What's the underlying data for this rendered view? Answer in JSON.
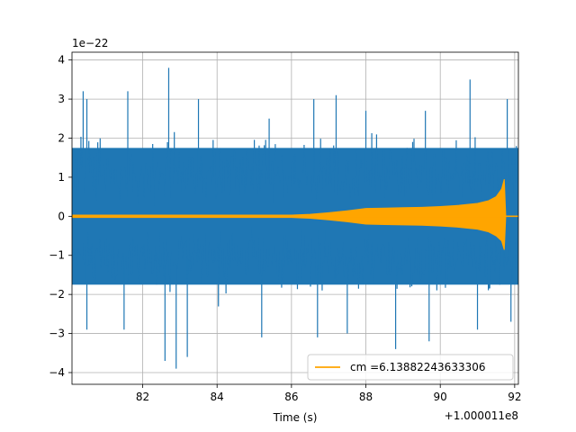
{
  "chart_data": {
    "type": "line",
    "title": "",
    "xlabel": "Time (s)",
    "ylabel": "",
    "x_offset_label": "+1.000011e8",
    "y_scale_label": "1e−22",
    "xlim": [
      80.1,
      92.1
    ],
    "ylim": [
      -4.3,
      4.2
    ],
    "grid": true,
    "legend_placement": "lower right",
    "x_ticks": [
      82,
      84,
      86,
      88,
      90,
      92
    ],
    "x_tick_labels": [
      "82",
      "84",
      "86",
      "88",
      "90",
      "92"
    ],
    "y_ticks": [
      -4,
      -3,
      -2,
      -1,
      0,
      1,
      2,
      3,
      4
    ],
    "y_tick_labels": [
      "−4",
      "−3",
      "−2",
      "−1",
      "0",
      "1",
      "2",
      "3",
      "4"
    ],
    "series": [
      {
        "name": "",
        "color": "#1f77b4",
        "description": "noisy strain data",
        "peaks_pos": [
          [
            80.4,
            3.2
          ],
          [
            80.5,
            3.0
          ],
          [
            81.6,
            3.2
          ],
          [
            82.7,
            3.8
          ],
          [
            83.5,
            3.0
          ],
          [
            85.4,
            2.5
          ],
          [
            86.6,
            3.0
          ],
          [
            87.2,
            3.1
          ],
          [
            88.0,
            2.7
          ],
          [
            89.6,
            2.7
          ],
          [
            90.8,
            3.5
          ],
          [
            91.8,
            3.0
          ]
        ],
        "peaks_neg": [
          [
            80.5,
            -2.9
          ],
          [
            81.5,
            -2.9
          ],
          [
            82.6,
            -3.7
          ],
          [
            82.9,
            -3.9
          ],
          [
            83.2,
            -3.6
          ],
          [
            85.2,
            -3.1
          ],
          [
            86.7,
            -3.1
          ],
          [
            87.5,
            -3.0
          ],
          [
            88.8,
            -3.4
          ],
          [
            89.7,
            -3.2
          ],
          [
            91.0,
            -2.9
          ],
          [
            91.9,
            -2.7
          ]
        ]
      },
      {
        "name": "cm =6.13882243633306",
        "color": "#ffa500",
        "description": "inspiral chirp template",
        "envelope": [
          [
            80.1,
            0.03
          ],
          [
            84.0,
            0.03
          ],
          [
            86.0,
            0.03
          ],
          [
            86.5,
            0.05
          ],
          [
            87.0,
            0.09
          ],
          [
            87.5,
            0.14
          ],
          [
            88.0,
            0.2
          ],
          [
            88.5,
            0.21
          ],
          [
            89.0,
            0.22
          ],
          [
            89.5,
            0.23
          ],
          [
            90.0,
            0.25
          ],
          [
            90.5,
            0.28
          ],
          [
            91.0,
            0.33
          ],
          [
            91.3,
            0.4
          ],
          [
            91.5,
            0.5
          ],
          [
            91.65,
            0.7
          ],
          [
            91.72,
            0.95
          ],
          [
            91.76,
            0.0
          ],
          [
            92.1,
            0.0
          ]
        ]
      }
    ]
  }
}
